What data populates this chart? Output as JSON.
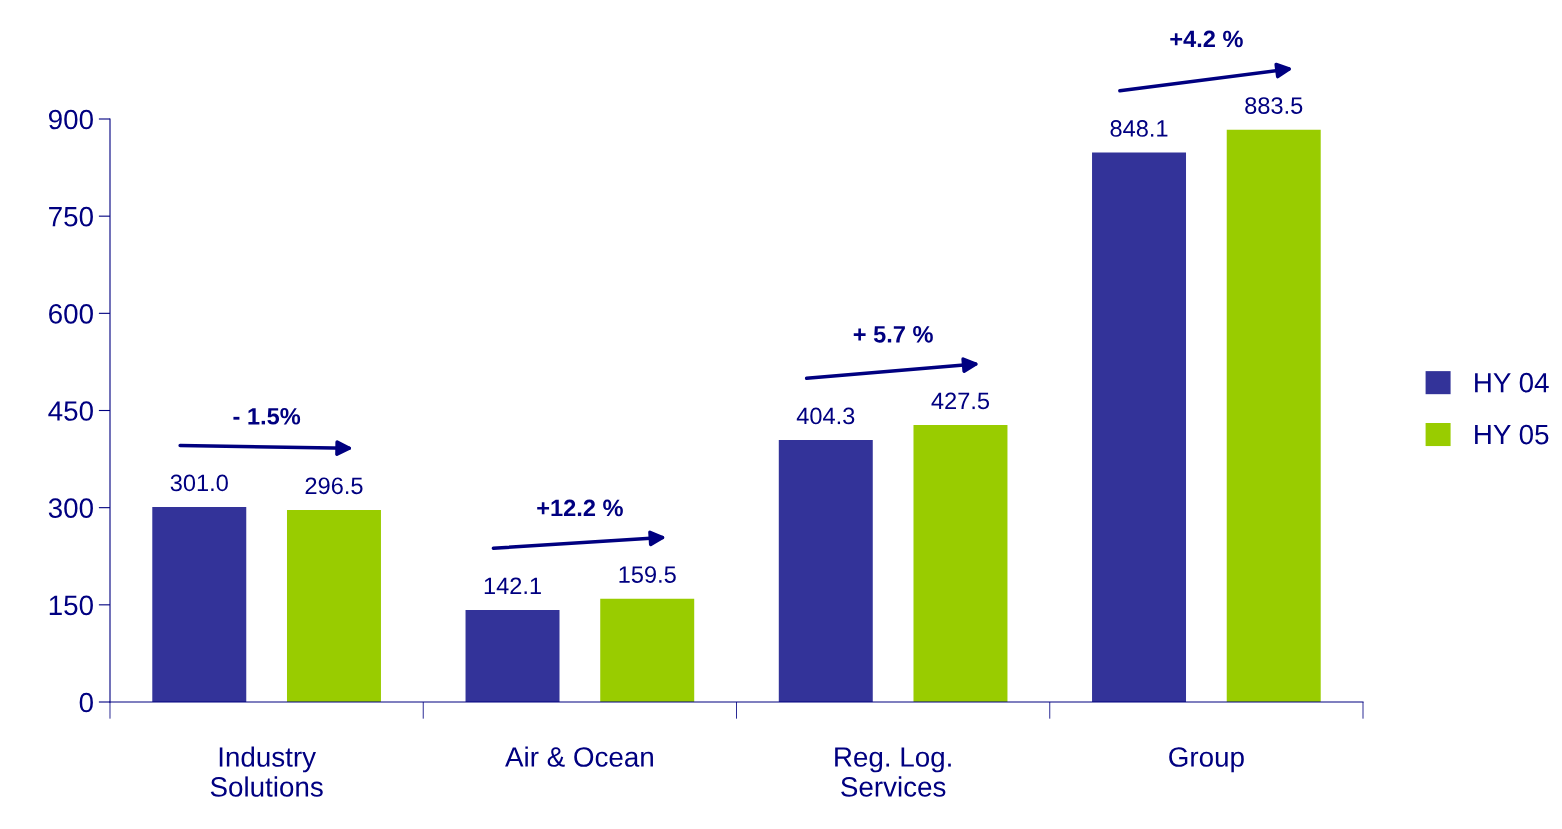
{
  "chart_data": {
    "type": "bar",
    "categories": [
      "Industry\nSolutions",
      "Air & Ocean",
      "Reg. Log.\nServices",
      "Group"
    ],
    "series": [
      {
        "name": "HY 04",
        "color": "#333399",
        "values": [
          301.0,
          142.1,
          404.3,
          848.1
        ],
        "value_labels": [
          "301.0",
          "142.1",
          "404.3",
          "848.1"
        ]
      },
      {
        "name": "HY 05",
        "color": "#99cc00",
        "values": [
          296.5,
          159.5,
          427.5,
          883.5
        ],
        "value_labels": [
          "296.5",
          "159.5",
          "427.5",
          "883.5"
        ]
      }
    ],
    "annotations": [
      "- 1.5%",
      "+12.2 %",
      "+ 5.7 %",
      "+4.2 %"
    ],
    "ylim": [
      0,
      900
    ],
    "yticks": [
      0,
      150,
      300,
      450,
      600,
      750,
      900
    ],
    "grid": false,
    "legend": "right"
  }
}
